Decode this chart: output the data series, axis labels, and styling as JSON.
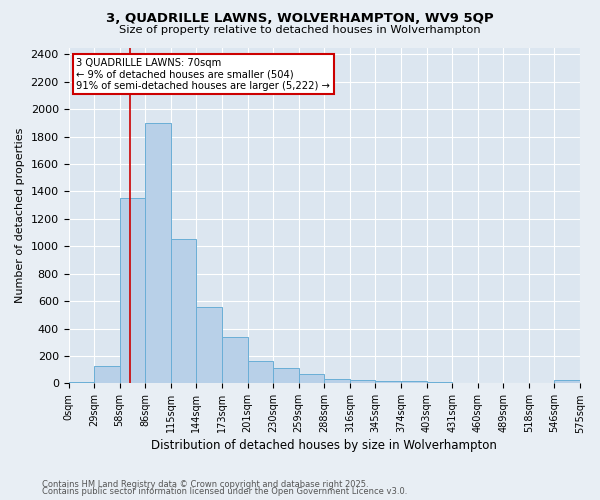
{
  "title": "3, QUADRILLE LAWNS, WOLVERHAMPTON, WV9 5QP",
  "subtitle": "Size of property relative to detached houses in Wolverhampton",
  "xlabel": "Distribution of detached houses by size in Wolverhampton",
  "ylabel": "Number of detached properties",
  "footnote1": "Contains HM Land Registry data © Crown copyright and database right 2025.",
  "footnote2": "Contains public sector information licensed under the Open Government Licence v3.0.",
  "bin_labels": [
    "0sqm",
    "29sqm",
    "58sqm",
    "86sqm",
    "115sqm",
    "144sqm",
    "173sqm",
    "201sqm",
    "230sqm",
    "259sqm",
    "288sqm",
    "316sqm",
    "345sqm",
    "374sqm",
    "403sqm",
    "431sqm",
    "460sqm",
    "489sqm",
    "518sqm",
    "546sqm",
    "575sqm"
  ],
  "bar_values": [
    10,
    130,
    1350,
    1900,
    1050,
    555,
    335,
    165,
    110,
    65,
    30,
    25,
    20,
    15,
    10,
    0,
    0,
    0,
    0,
    25
  ],
  "bar_color": "#b8d0e8",
  "bar_edge_color": "#6aaed6",
  "red_line_x": 2.42,
  "annotation_title": "3 QUADRILLE LAWNS: 70sqm",
  "annotation_line1": "← 9% of detached houses are smaller (504)",
  "annotation_line2": "91% of semi-detached houses are larger (5,222) →",
  "annotation_box_edge": "#cc0000",
  "ylim": [
    0,
    2450
  ],
  "yticks": [
    0,
    200,
    400,
    600,
    800,
    1000,
    1200,
    1400,
    1600,
    1800,
    2000,
    2200,
    2400
  ],
  "bg_color": "#e8eef4",
  "plot_bg_color": "#dce6f0"
}
